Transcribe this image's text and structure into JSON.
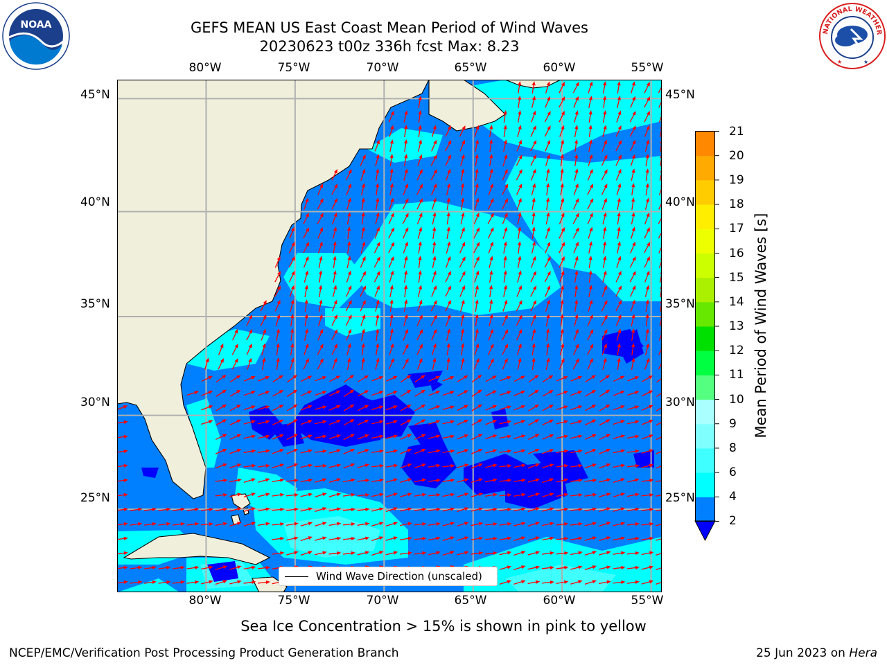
{
  "title": {
    "line1": "GEFS MEAN US East Coast Mean Period of Wind Waves",
    "line2": "20230623 t00z 336h fcst   Max: 8.23"
  },
  "map": {
    "lon_labels": [
      "80°W",
      "75°W",
      "70°W",
      "65°W",
      "60°W",
      "55°W"
    ],
    "lat_labels": [
      "45°N",
      "40°N",
      "35°N",
      "30°N",
      "25°N"
    ],
    "lon_values": [
      -80,
      -75,
      -70,
      -65,
      -60,
      -55
    ],
    "lat_values": [
      45,
      40,
      35,
      30,
      25
    ],
    "extent": {
      "lon": [
        -85,
        -54.4
      ],
      "lat": [
        20.4,
        45.8
      ]
    },
    "colors": {
      "land": "#efefdc",
      "grid": "#b0b0b0",
      "arrow": "#ff0000"
    }
  },
  "legend": {
    "label": "Wind Wave Direction (unscaled)"
  },
  "colorbar": {
    "label": "Mean Period of Wind Waves [s]",
    "tick_labels": [
      "2",
      "4",
      "6",
      "8",
      "9",
      "10",
      "11",
      "12",
      "13",
      "14",
      "15",
      "16",
      "17",
      "18",
      "19",
      "20",
      "21"
    ],
    "colors": [
      "#0080ff",
      "#00ffff",
      "#40ffff",
      "#80ffff",
      "#aaffff",
      "#55ff80",
      "#00ff40",
      "#00e000",
      "#66e800",
      "#aaf000",
      "#ccff00",
      "#eeff00",
      "#ffee00",
      "#ffcc00",
      "#ffaa00",
      "#ff8800",
      "#ff5500",
      "#ff2a00",
      "#ff0000"
    ],
    "extend_color": "#0000ff"
  },
  "caption": "Sea Ice Concentration > 15% is shown in pink to yellow",
  "footer": {
    "left": "NCEP/EMC/Verification Post Processing Product Generation Branch",
    "right_date": "25 Jun 2023 on",
    "right_host": "Hera"
  },
  "logos": {
    "left": "NOAA",
    "right": "NATIONAL WEATHER SERVICE"
  }
}
